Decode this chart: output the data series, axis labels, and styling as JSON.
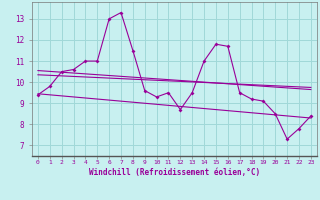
{
  "x": [
    0,
    1,
    2,
    3,
    4,
    5,
    6,
    7,
    8,
    9,
    10,
    11,
    12,
    13,
    14,
    15,
    16,
    17,
    18,
    19,
    20,
    21,
    22,
    23
  ],
  "y_main": [
    9.4,
    9.8,
    10.5,
    10.6,
    11.0,
    11.0,
    13.0,
    13.3,
    11.5,
    9.6,
    9.3,
    9.5,
    8.7,
    9.5,
    11.0,
    11.8,
    11.7,
    9.5,
    9.2,
    9.1,
    8.5,
    7.3,
    7.8,
    8.4
  ],
  "trend1_x": [
    0,
    23
  ],
  "trend1_y": [
    10.55,
    9.65
  ],
  "trend2_x": [
    0,
    23
  ],
  "trend2_y": [
    10.35,
    9.75
  ],
  "trend3_x": [
    0,
    23
  ],
  "trend3_y": [
    9.45,
    8.3
  ],
  "bg_color": "#c8f0f0",
  "grid_color": "#a0d8d8",
  "line_color": "#990099",
  "xlabel": "Windchill (Refroidissement éolien,°C)",
  "ylim": [
    6.5,
    13.8
  ],
  "xlim": [
    -0.5,
    23.5
  ],
  "yticks": [
    7,
    8,
    9,
    10,
    11,
    12,
    13
  ],
  "xtick_labels": [
    "0",
    "1",
    "2",
    "3",
    "4",
    "5",
    "6",
    "7",
    "8",
    "9",
    "10",
    "11",
    "12",
    "13",
    "14",
    "15",
    "16",
    "17",
    "18",
    "19",
    "20",
    "21",
    "22",
    "23"
  ]
}
